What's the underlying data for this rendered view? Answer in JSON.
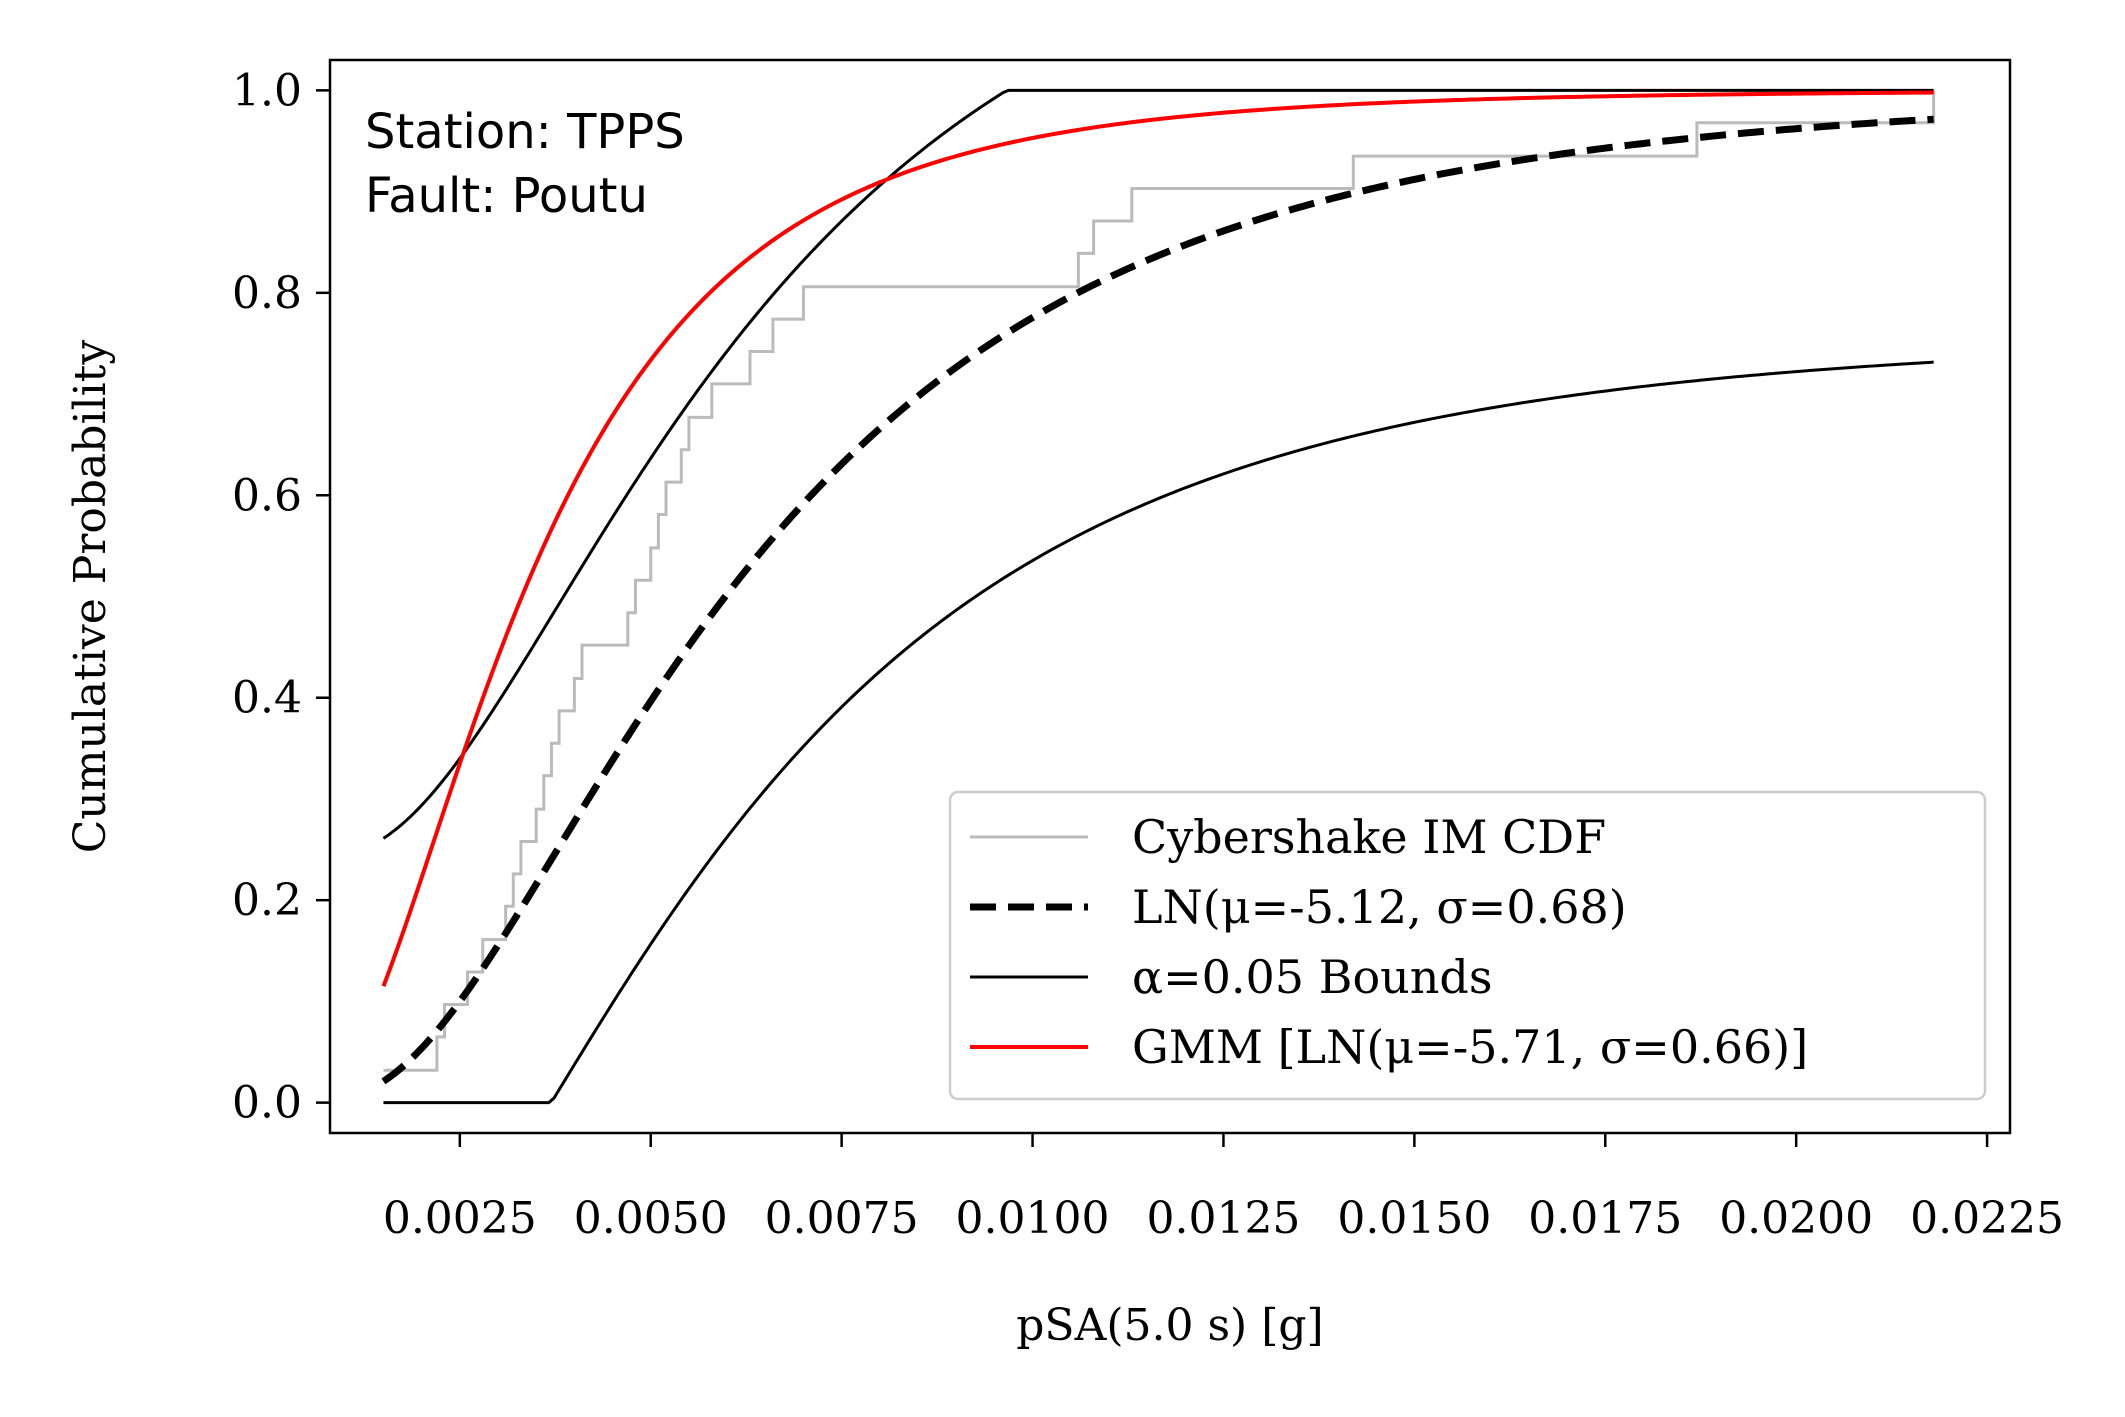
{
  "chart_data": {
    "type": "line",
    "xlabel": "pSA(5.0 s) [g]",
    "ylabel": "Cumulative Probability",
    "xlim": [
      0.0008,
      0.0228
    ],
    "ylim": [
      -0.03,
      1.03
    ],
    "xticks": [
      0.0025,
      0.005,
      0.0075,
      0.01,
      0.0125,
      0.015,
      0.0175,
      0.02,
      0.0225
    ],
    "xtick_labels": [
      "0.0025",
      "0.0050",
      "0.0075",
      "0.0100",
      "0.0125",
      "0.0150",
      "0.0175",
      "0.0200",
      "0.0225"
    ],
    "yticks": [
      0.0,
      0.2,
      0.4,
      0.6,
      0.8,
      1.0
    ],
    "ytick_labels": [
      "0.0",
      "0.2",
      "0.4",
      "0.6",
      "0.8",
      "1.0"
    ],
    "grid": false,
    "legend_position": "lower right",
    "annotation": [
      "Station: TPPS",
      "Fault: Poutu"
    ],
    "legend": [
      {
        "label": "Cybershake IM CDF",
        "color": "#bbbbbb",
        "style": "solid"
      },
      {
        "label": "LN(μ=-5.12, σ=0.68)",
        "color": "#000000",
        "style": "dashed"
      },
      {
        "label": "α=0.05 Bounds",
        "color": "#000000",
        "style": "solid"
      },
      {
        "label": "GMM [LN(μ=-5.71, σ=0.66)]",
        "color": "#ff0000",
        "style": "solid"
      }
    ],
    "series": [
      {
        "name": "Cybershake IM CDF",
        "kind": "step",
        "color": "#bbbbbb",
        "x": [
          0.0015,
          0.0022,
          0.0023,
          0.0026,
          0.0028,
          0.0031,
          0.0032,
          0.0033,
          0.0035,
          0.0036,
          0.0037,
          0.0038,
          0.004,
          0.0041,
          0.0047,
          0.0048,
          0.005,
          0.0051,
          0.0052,
          0.0054,
          0.0055,
          0.0058,
          0.0063,
          0.0066,
          0.0069,
          0.007,
          0.0077,
          0.0083,
          0.0085,
          0.0093,
          0.0095,
          0.0099,
          0.0101,
          0.0106,
          0.0108,
          0.0113,
          0.0114,
          0.0117,
          0.0118,
          0.0135,
          0.0137,
          0.0138,
          0.0142,
          0.015,
          0.016,
          0.0168,
          0.0187,
          0.0218
        ],
        "y": [
          0.032,
          0.065,
          0.097,
          0.129,
          0.161,
          0.194,
          0.226,
          0.258,
          0.29,
          0.323,
          0.355,
          0.387,
          0.419,
          0.452,
          0.484,
          0.516,
          0.548,
          0.581,
          0.613,
          0.645,
          0.677,
          0.71,
          0.742,
          0.774,
          0.774,
          0.806,
          0.806,
          0.806,
          0.806,
          0.806,
          0.806,
          0.806,
          0.806,
          0.839,
          0.871,
          0.903,
          0.903,
          0.903,
          0.903,
          0.903,
          0.903,
          0.903,
          0.935,
          0.935,
          0.935,
          0.935,
          0.968,
          1.0
        ]
      },
      {
        "name": "LN(μ=-5.12, σ=0.68)",
        "kind": "lognormal_cdf",
        "mu": -5.12,
        "sigma": 0.68,
        "color": "#000000",
        "style": "dashed",
        "x_range": [
          0.0015,
          0.0218
        ]
      },
      {
        "name": "α=0.05 Bounds",
        "kind": "ks_upper",
        "mu": -5.12,
        "sigma": 0.68,
        "d": 0.24,
        "color": "#000000",
        "style": "solid",
        "x_range": [
          0.0015,
          0.0218
        ]
      },
      {
        "name": "α=0.05 Bounds",
        "kind": "ks_lower",
        "mu": -5.12,
        "sigma": 0.68,
        "d": 0.24,
        "color": "#000000",
        "style": "solid",
        "x_range": [
          0.0015,
          0.0218
        ]
      },
      {
        "name": "GMM [LN(μ=-5.71, σ=0.66)]",
        "kind": "lognormal_cdf",
        "mu": -5.71,
        "sigma": 0.66,
        "color": "#ff0000",
        "style": "solid",
        "x_range": [
          0.0015,
          0.0218
        ]
      }
    ]
  }
}
